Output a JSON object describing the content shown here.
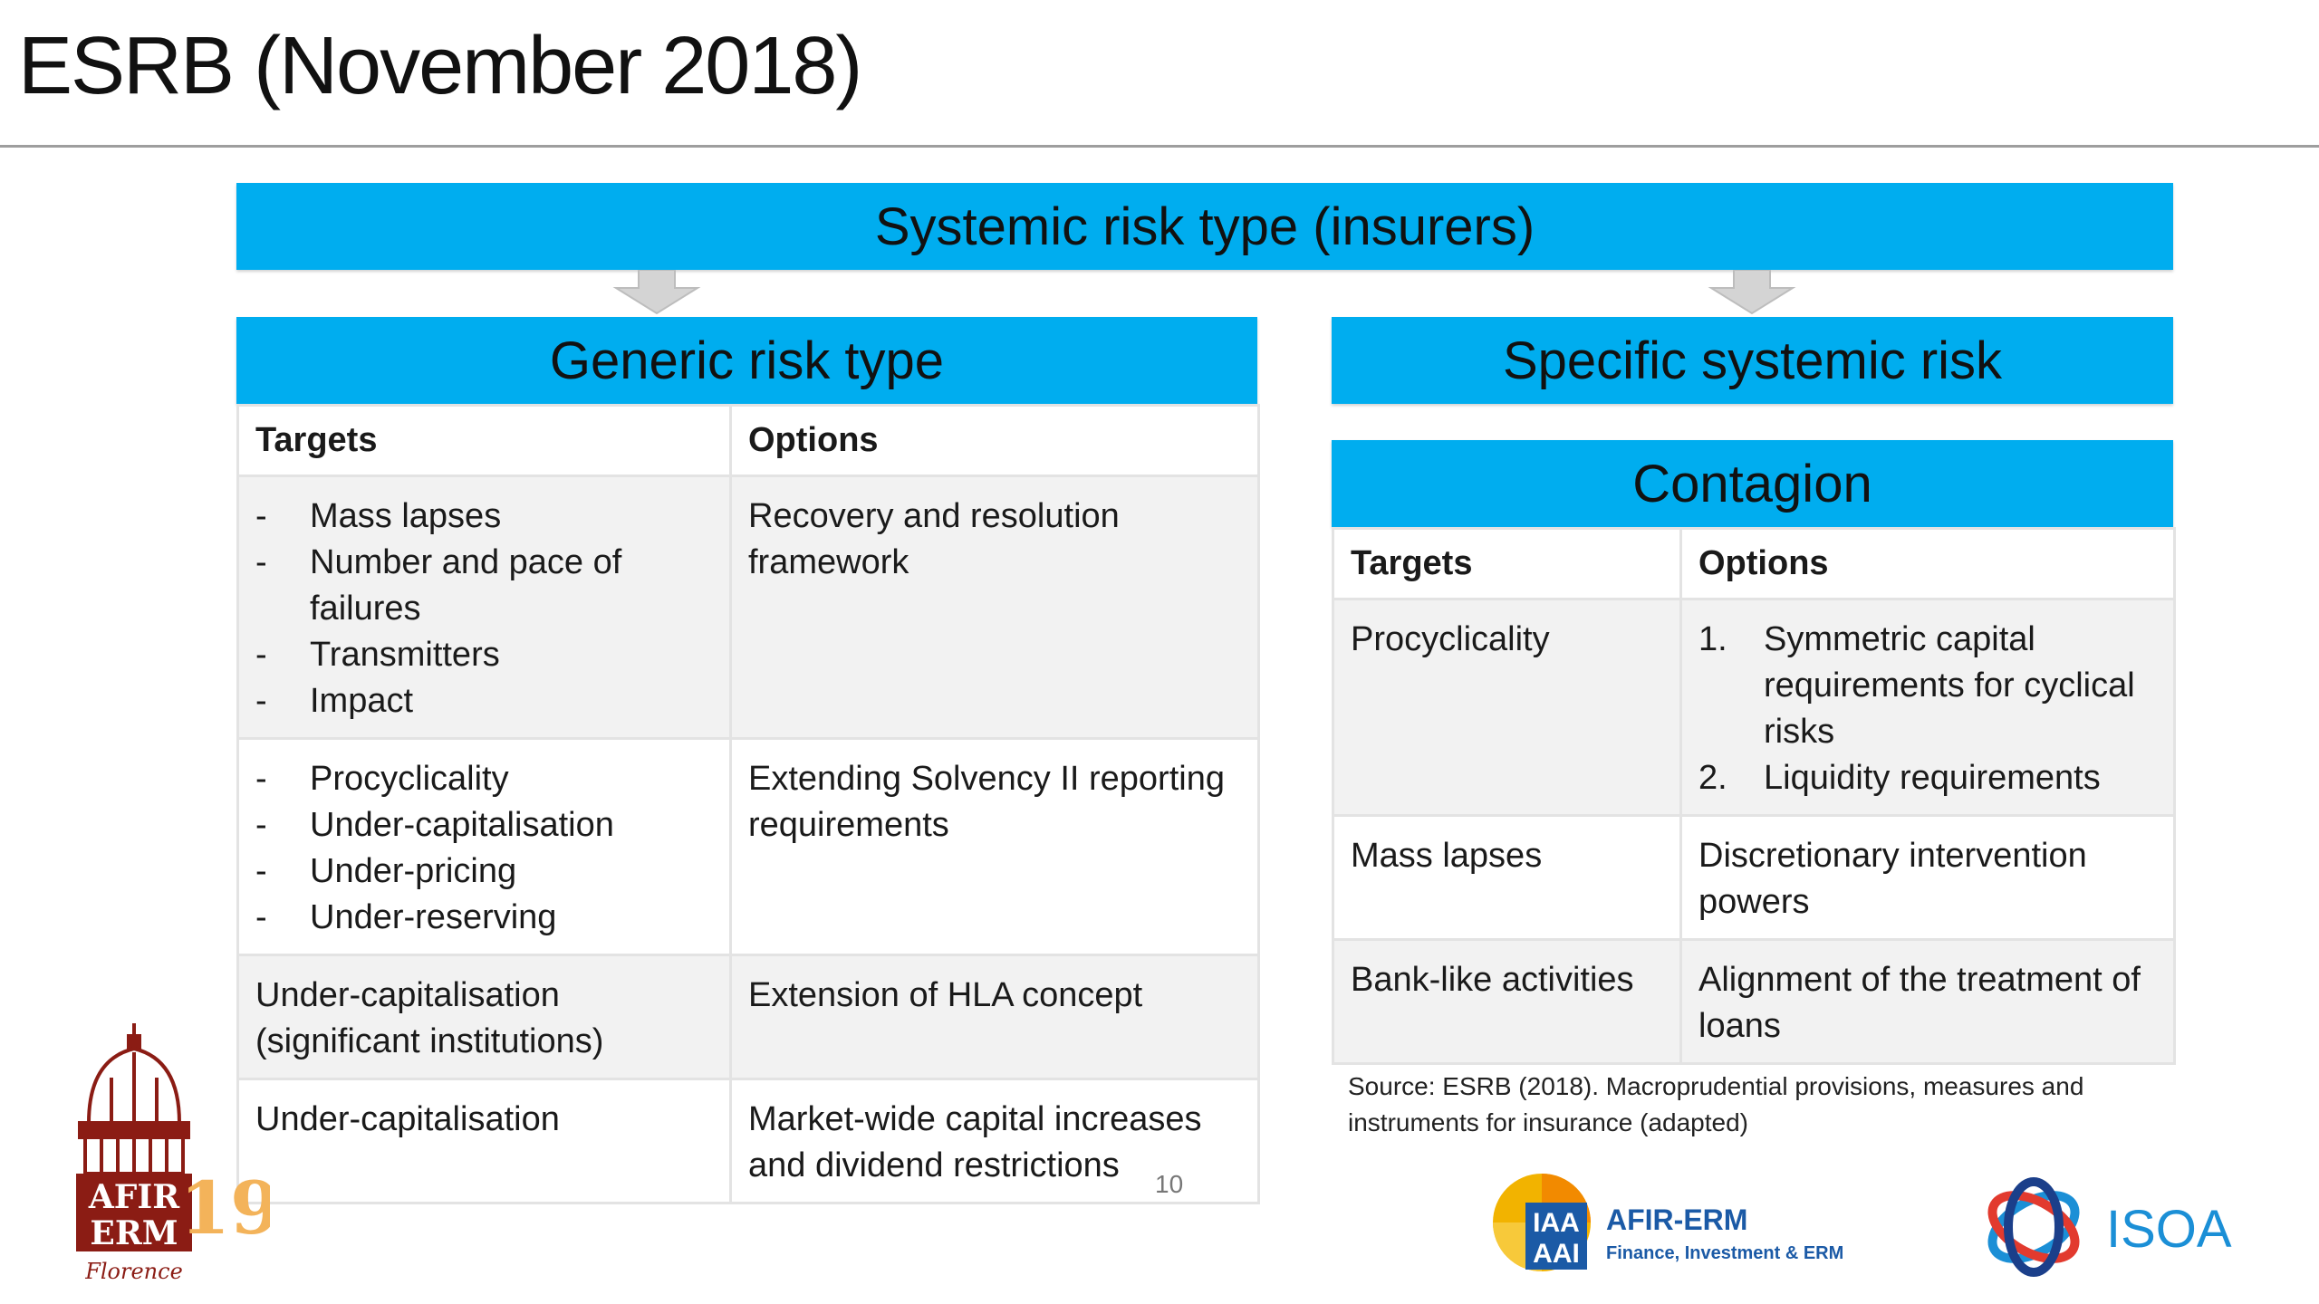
{
  "slide": {
    "title": "ESRB (November 2018)",
    "page_number": "10",
    "source_note": "Source: ESRB (2018). Macroprudential provisions, measures and instruments for insurance (adapted)"
  },
  "top_banner": "Systemic risk type (insurers)",
  "generic": {
    "banner": "Generic risk type",
    "headers": {
      "targets": "Targets",
      "options": "Options"
    },
    "rows": [
      {
        "targets": [
          "Mass lapses",
          "Number and pace of failures",
          "Transmitters",
          "Impact"
        ],
        "option": "Recovery and resolution framework"
      },
      {
        "targets": [
          "Procyclicality",
          "Under-capitalisation",
          "Under-pricing",
          "Under-reserving"
        ],
        "option": "Extending Solvency II reporting requirements"
      },
      {
        "target_text": "Under-capitalisation (significant institutions)",
        "option": "Extension of HLA concept"
      },
      {
        "target_text": "Under-capitalisation",
        "option": "Market-wide capital increases and dividend restrictions"
      }
    ],
    "bullet": "-"
  },
  "specific": {
    "banner": "Specific systemic risk",
    "sub_banner": "Contagion",
    "headers": {
      "targets": "Targets",
      "options": "Options"
    },
    "rows": [
      {
        "target": "Procyclicality",
        "options": [
          {
            "num": "1.",
            "text": "Symmetric capital requirements for cyclical risks"
          },
          {
            "num": "2.",
            "text": "Liquidity requirements"
          }
        ]
      },
      {
        "target": "Mass lapses",
        "option": "Discretionary intervention powers"
      },
      {
        "target": "Bank-like activities",
        "option": "Alignment of the treatment of loans"
      }
    ]
  },
  "logos": {
    "afir": {
      "line1": "AFIR",
      "line2": "ERM",
      "year": "19",
      "city": "Florence"
    },
    "iaa": {
      "badge1": "IAA",
      "badge2": "AAI",
      "name": "AFIR-ERM",
      "tagline": "Finance, Investment & ERM"
    },
    "isoa": {
      "name": "ISOA"
    }
  },
  "colors": {
    "banner": "#00adef",
    "afir_brand": "#8b1c14",
    "iaa_blue": "#1b5aa6",
    "isoa_blue": "#1b8fd6"
  }
}
